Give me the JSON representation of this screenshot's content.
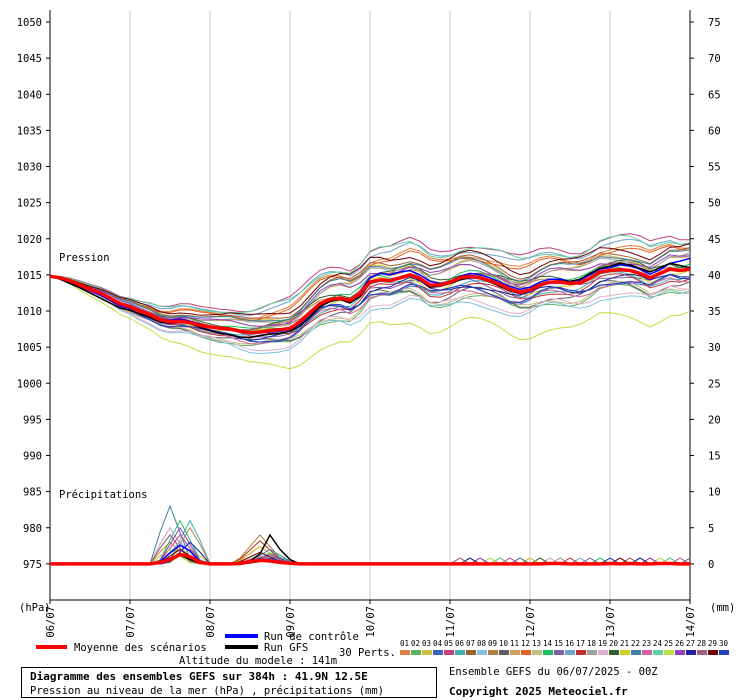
{
  "chart_data": {
    "type": "line",
    "x_tick_labels": [
      "06/07",
      "07/07",
      "08/07",
      "09/07",
      "10/07",
      "11/07",
      "12/07",
      "13/07",
      "14/07"
    ],
    "left_axis": {
      "unit_label": "(hPa)",
      "min": 970,
      "max": 1050,
      "ticks": [
        975,
        980,
        985,
        990,
        995,
        1000,
        1005,
        1010,
        1015,
        1020,
        1025,
        1030,
        1035,
        1040,
        1045,
        1050
      ]
    },
    "right_axis": {
      "unit_label": "(mm)",
      "min": 0,
      "max": 75,
      "ticks": [
        0,
        5,
        10,
        15,
        20,
        25,
        30,
        35,
        40,
        45,
        50,
        55,
        60,
        65,
        70,
        75
      ]
    },
    "annotations": {
      "pressure": "Pression",
      "precip": "Précipitations"
    },
    "x_steps": 64,
    "pressure_mean": [
      1014.8,
      1014.6,
      1014.2,
      1013.6,
      1013.0,
      1012.5,
      1011.8,
      1011.0,
      1010.6,
      1010.0,
      1009.5,
      1008.8,
      1008.5,
      1008.6,
      1008.4,
      1008.0,
      1007.8,
      1007.6,
      1007.5,
      1007.2,
      1007.0,
      1007.1,
      1007.3,
      1007.4,
      1007.6,
      1008.5,
      1009.8,
      1011.0,
      1011.6,
      1011.8,
      1011.5,
      1012.4,
      1014.0,
      1014.3,
      1014.2,
      1014.6,
      1015.0,
      1014.5,
      1013.6,
      1013.6,
      1014.0,
      1014.6,
      1014.8,
      1014.6,
      1014.2,
      1013.7,
      1013.0,
      1012.6,
      1012.9,
      1013.6,
      1014.0,
      1014.0,
      1013.8,
      1013.9,
      1014.5,
      1015.4,
      1015.6,
      1015.7,
      1015.6,
      1015.2,
      1014.6,
      1015.2,
      1015.8,
      1015.6,
      1015.8
    ],
    "pressure_control": [
      1014.8,
      1014.5,
      1014.0,
      1013.4,
      1012.8,
      1012.2,
      1011.5,
      1010.7,
      1010.4,
      1009.9,
      1009.4,
      1008.9,
      1008.7,
      1008.9,
      1008.6,
      1008.2,
      1007.9,
      1007.6,
      1007.4,
      1007.1,
      1006.9,
      1007.0,
      1007.1,
      1007.2,
      1007.4,
      1008.2,
      1009.6,
      1010.8,
      1011.4,
      1011.6,
      1011.4,
      1012.5,
      1014.6,
      1015.2,
      1015.0,
      1015.4,
      1015.6,
      1015.0,
      1014.1,
      1013.8,
      1014.1,
      1014.8,
      1015.2,
      1015.0,
      1014.6,
      1014.0,
      1013.4,
      1013.0,
      1013.3,
      1014.0,
      1014.4,
      1014.4,
      1014.1,
      1014.3,
      1015.0,
      1015.8,
      1016.0,
      1016.4,
      1016.2,
      1015.8,
      1015.1,
      1015.7,
      1016.6,
      1016.9,
      1017.3
    ],
    "pressure_gfs": [
      1014.8,
      1014.4,
      1013.8,
      1013.2,
      1012.5,
      1011.8,
      1011.1,
      1010.4,
      1010.1,
      1009.6,
      1009.1,
      1008.5,
      1008.3,
      1008.6,
      1008.3,
      1007.7,
      1007.3,
      1006.9,
      1006.7,
      1006.4,
      1006.3,
      1006.6,
      1006.8,
      1006.9,
      1007.2,
      1007.9,
      1009.2,
      1010.6,
      1011.3,
      1011.6,
      1011.1,
      1012.0,
      1013.9,
      1014.4,
      1014.1,
      1014.5,
      1015.0,
      1014.3,
      1013.3,
      1013.4,
      1013.8,
      1014.3,
      1014.6,
      1014.5,
      1014.0,
      1013.4,
      1012.8,
      1012.4,
      1012.8,
      1013.5,
      1013.9,
      1014.2,
      1014.1,
      1014.4,
      1015.2,
      1015.9,
      1016.2,
      1016.6,
      1016.4,
      1015.9,
      1015.4,
      1016.0,
      1016.6,
      1016.3,
      1016.0
    ],
    "precip_mean": [
      0,
      0,
      0,
      0,
      0,
      0,
      0,
      0,
      0,
      0,
      0,
      0.2,
      0.6,
      1.3,
      1.0,
      0.2,
      0,
      0,
      0,
      0.05,
      0.3,
      0.5,
      0.4,
      0.2,
      0.1,
      0,
      0,
      0,
      0,
      0,
      0,
      0,
      0,
      0,
      0,
      0,
      0,
      0,
      0,
      0,
      0,
      0,
      0,
      0,
      0,
      0,
      0,
      0,
      0,
      0,
      0.05,
      0.05,
      0,
      0,
      0,
      0,
      0.05,
      0,
      0.05,
      0,
      0,
      0.05,
      0.05,
      0,
      0
    ],
    "precip_control": [
      0,
      0,
      0,
      0,
      0,
      0,
      0,
      0,
      0,
      0,
      0,
      0.3,
      1.5,
      2.6,
      1.8,
      0.3,
      0,
      0,
      0,
      0,
      0.2,
      0.5,
      0.3,
      0.1,
      0,
      0,
      0,
      0,
      0,
      0,
      0,
      0,
      0,
      0,
      0,
      0,
      0,
      0,
      0,
      0,
      0,
      0,
      0,
      0,
      0,
      0,
      0,
      0,
      0,
      0,
      0,
      0,
      0,
      0,
      0,
      0,
      0,
      0,
      0,
      0,
      0,
      0,
      0,
      0,
      0
    ],
    "precip_gfs": [
      0,
      0,
      0,
      0,
      0,
      0,
      0,
      0,
      0,
      0,
      0,
      0.2,
      0.8,
      1.2,
      0.6,
      0.1,
      0,
      0,
      0,
      0,
      0.4,
      1.4,
      4.0,
      2.0,
      0.6,
      0,
      0,
      0,
      0,
      0,
      0,
      0,
      0,
      0,
      0,
      0,
      0,
      0,
      0,
      0,
      0,
      0,
      0,
      0,
      0,
      0,
      0,
      0,
      0,
      0,
      0,
      0,
      0,
      0,
      0,
      0,
      0,
      0,
      0,
      0,
      0,
      0,
      0,
      0,
      0
    ],
    "perturbation_offsets": [
      3.2,
      -2.6,
      1.8,
      -1.4,
      4.6,
      -0.8,
      2.4,
      -3.4,
      0.6,
      -1.9,
      1.2,
      2.9,
      -2.2,
      0.3,
      -0.5,
      3.9,
      -1.1,
      1.6,
      -2.9,
      0.9,
      -0.2,
      2.1,
      -1.6,
      4.2,
      -6.2,
      1.4,
      -0.9,
      0.4,
      3.0,
      -1.3
    ],
    "perturbation_precip_peaks": [
      3,
      4,
      2,
      5,
      3,
      6,
      2,
      3,
      5,
      4,
      2,
      3,
      4,
      6,
      3,
      2,
      4,
      3,
      5,
      2,
      3,
      8,
      4,
      3,
      2,
      5,
      3,
      4,
      2,
      3
    ],
    "legend": {
      "mean": "Moyenne des scénarios",
      "control": "Run de contrôle",
      "gfs": "Run GFS",
      "perts": "30 Perts.",
      "pert_labels": [
        "01",
        "02",
        "03",
        "04",
        "05",
        "06",
        "07",
        "08",
        "09",
        "10",
        "11",
        "12",
        "13",
        "14",
        "15",
        "16",
        "17",
        "18",
        "19",
        "20",
        "21",
        "22",
        "23",
        "24",
        "25",
        "26",
        "27",
        "28",
        "29",
        "30"
      ],
      "pert_colors": [
        "#e08040",
        "#60b060",
        "#d0c040",
        "#4060c0",
        "#c04080",
        "#40b0b0",
        "#a06030",
        "#80c0e0",
        "#b08040",
        "#606060",
        "#d0a060",
        "#e06020",
        "#c0c080",
        "#20c060",
        "#8060a0",
        "#70a0d0",
        "#c03030",
        "#a0a0a0",
        "#e0b0d0",
        "#306030",
        "#d0d020",
        "#4080a0",
        "#d060a0",
        "#60d0a0",
        "#c0e040",
        "#9040c0",
        "#2020a0",
        "#a06080",
        "#700000",
        "#2040c0"
      ]
    },
    "colors": {
      "mean": "#ff0000",
      "control": "#0000ff",
      "gfs": "#000000"
    }
  },
  "footer": {
    "altitude": "Altitude du modele : 141m",
    "title_line": "Diagramme des ensembles GEFS sur 384h : 41.9N 12.5E",
    "subtitle_line": "Pression au niveau de la mer (hPa) , précipitations (mm)",
    "run_info": "Ensemble GEFS du 06/07/2025 - 00Z",
    "copyright": "Copyright 2025 Meteociel.fr"
  }
}
